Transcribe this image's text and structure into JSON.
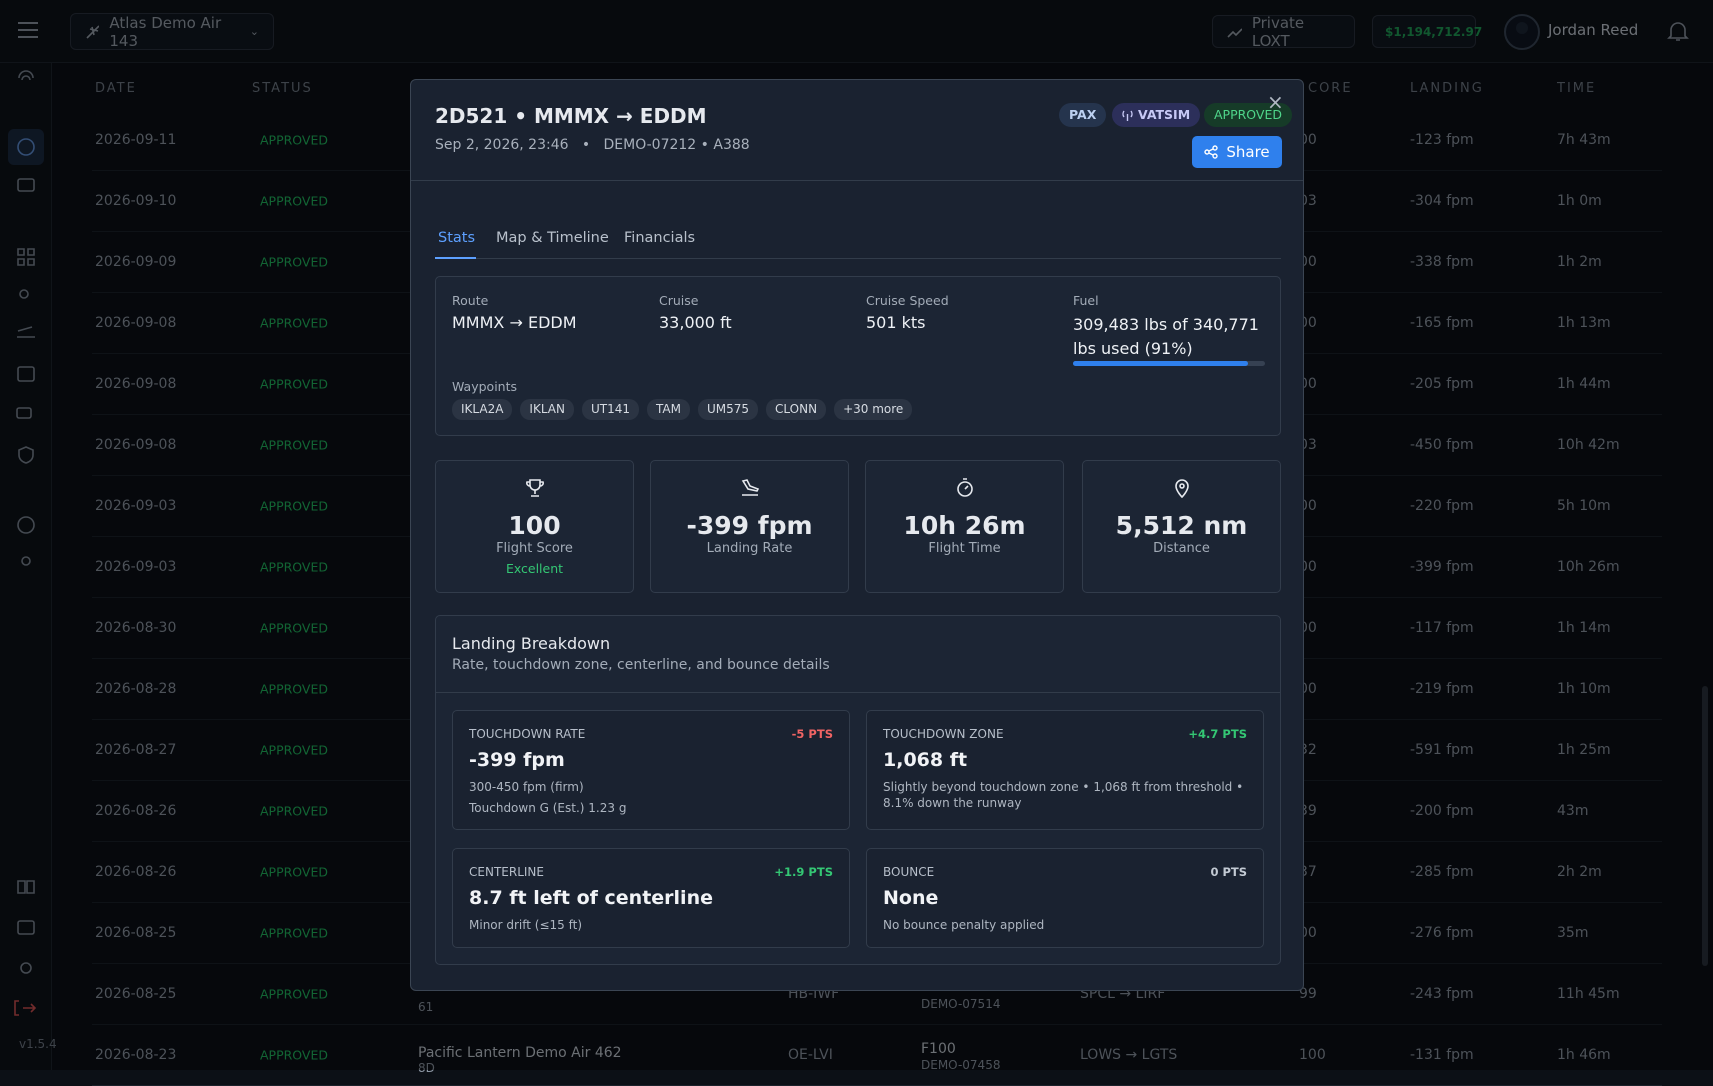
{
  "app": {
    "airline": "Atlas Demo Air 143",
    "company": "Private LOXT",
    "balance": "$1,194,712.97",
    "user": "Jordan Reed",
    "version": "v1.5.4"
  },
  "table": {
    "headers": {
      "date": "DATE",
      "status": "STATUS",
      "score": "CORE",
      "landing": "LANDING",
      "time": "TIME"
    },
    "rows": [
      {
        "date": "2026-09-11",
        "status": "APPROVED",
        "score": "00",
        "landing": "-123 fpm",
        "time": "7h 43m"
      },
      {
        "date": "2026-09-10",
        "status": "APPROVED",
        "score": "03",
        "landing": "-304 fpm",
        "time": "1h 0m"
      },
      {
        "date": "2026-09-09",
        "status": "APPROVED",
        "score": "00",
        "landing": "-338 fpm",
        "time": "1h 2m"
      },
      {
        "date": "2026-09-08",
        "status": "APPROVED",
        "score": "00",
        "landing": "-165 fpm",
        "time": "1h 13m"
      },
      {
        "date": "2026-09-08",
        "status": "APPROVED",
        "score": "00",
        "landing": "-205 fpm",
        "time": "1h 44m"
      },
      {
        "date": "2026-09-08",
        "status": "APPROVED",
        "score": "03",
        "landing": "-450 fpm",
        "time": "10h 42m"
      },
      {
        "date": "2026-09-03",
        "status": "APPROVED",
        "score": "00",
        "landing": "-220 fpm",
        "time": "5h 10m"
      },
      {
        "date": "2026-09-03",
        "status": "APPROVED",
        "score": "00",
        "landing": "-399 fpm",
        "time": "10h 26m"
      },
      {
        "date": "2026-08-30",
        "status": "APPROVED",
        "score": "00",
        "landing": "-117 fpm",
        "time": "1h 14m"
      },
      {
        "date": "2026-08-28",
        "status": "APPROVED",
        "score": "00",
        "landing": "-219 fpm",
        "time": "1h 10m"
      },
      {
        "date": "2026-08-27",
        "status": "APPROVED",
        "score": "32",
        "landing": "-591 fpm",
        "time": "1h 25m"
      },
      {
        "date": "2026-08-26",
        "status": "APPROVED",
        "score": "39",
        "landing": "-200 fpm",
        "time": "43m"
      },
      {
        "date": "2026-08-26",
        "status": "APPROVED",
        "score": "37",
        "landing": "-285 fpm",
        "time": "2h 2m"
      },
      {
        "date": "2026-08-25",
        "status": "APPROVED",
        "score": "00",
        "landing": "-276 fpm",
        "time": "35m"
      },
      {
        "date": "2026-08-25",
        "status": "APPROVED",
        "airline_code": "61",
        "registration": "HB-IWF",
        "flight_id": "DEMO-07514",
        "route": "SPCL → LIRF",
        "score": "99",
        "landing": "-243 fpm",
        "time": "11h 45m"
      },
      {
        "date": "2026-08-23",
        "status": "APPROVED",
        "airline": "Pacific Lantern Demo Air 462",
        "airline_code": "8D",
        "registration": "OE-LVI",
        "aircraft": "F100",
        "flight_id": "DEMO-07458",
        "route": "LOWS → LGTS",
        "score": "100",
        "landing": "-131 fpm",
        "time": "1h 46m"
      }
    ]
  },
  "modal": {
    "title": "2D521 • MMMX → EDDM",
    "date": "Sep 2, 2026, 23:46",
    "separator": "•",
    "detail": "DEMO-07212 • A388",
    "badges": [
      "PAX",
      "VATSIM",
      "APPROVED"
    ],
    "close": "×",
    "share": "Share",
    "tabs": [
      "Stats",
      "Map & Timeline",
      "Financials"
    ],
    "info": {
      "route_label": "Route",
      "route": "MMMX → EDDM",
      "cruise_label": "Cruise",
      "cruise": "33,000 ft",
      "speed_label": "Cruise Speed",
      "speed": "501 kts",
      "fuel_label": "Fuel",
      "fuel": "309,483 lbs of 340,771 lbs used (91%)",
      "fuel_percent": 91,
      "waypoints_label": "Waypoints",
      "waypoints": [
        "IKLA2A",
        "IKLAN",
        "UT141",
        "TAM",
        "UM575",
        "CLONN",
        "+30 more"
      ]
    },
    "stats": [
      {
        "value": "100",
        "label": "Flight Score",
        "note": "Excellent"
      },
      {
        "value": "-399 fpm",
        "label": "Landing Rate"
      },
      {
        "value": "10h 26m",
        "label": "Flight Time"
      },
      {
        "value": "5,512 nm",
        "label": "Distance"
      }
    ],
    "breakdown": {
      "title": "Landing Breakdown",
      "subtitle": "Rate, touchdown zone, centerline, and bounce details",
      "cards": [
        {
          "label": "TOUCHDOWN RATE",
          "points": "-5 PTS",
          "value": "-399 fpm",
          "lines": [
            "300-450 fpm (firm)",
            "Touchdown G (Est.) 1.23 g"
          ]
        },
        {
          "label": "TOUCHDOWN ZONE",
          "points": "+4.7 PTS",
          "value": "1,068 ft",
          "lines": [
            "Slightly beyond touchdown zone • 1,068 ft from threshold • 8.1% down the runway"
          ]
        },
        {
          "label": "CENTERLINE",
          "points": "+1.9 PTS",
          "value": "8.7 ft left of centerline",
          "lines": [
            "Minor drift (≤15 ft)"
          ]
        },
        {
          "label": "BOUNCE",
          "points": "0 PTS",
          "value": "None",
          "lines": [
            "No bounce penalty applied"
          ]
        }
      ]
    }
  }
}
